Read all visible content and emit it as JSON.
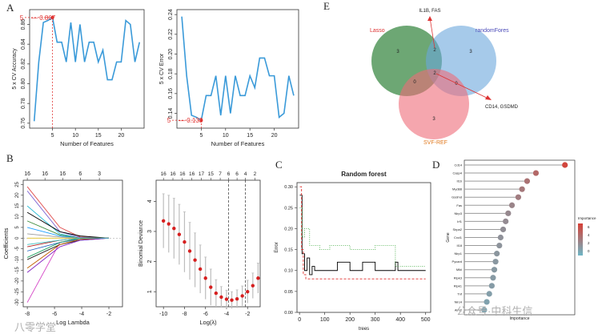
{
  "panel_letters": {
    "A": "A",
    "B": "B",
    "C": "C",
    "D": "D",
    "E": "E"
  },
  "watermarks": {
    "left": "八零学堂",
    "right": "公众号·中科生信"
  },
  "colors": {
    "line_blue": "#3a9ad9",
    "highlight_red": "#e0312f",
    "venn_green": "#3c8a45",
    "venn_blue": "#6aa7dc",
    "venn_red": "#ef6b78"
  },
  "chart_data": [
    {
      "id": "A1",
      "type": "line",
      "xlabel": "Number of Features",
      "ylabel": "5 x CV Accuracy",
      "xlim": [
        0,
        25
      ],
      "ylim": [
        0.755,
        0.875
      ],
      "xticks": [
        "5",
        "10",
        "15",
        "20"
      ],
      "yticks": [
        "0.76",
        "0.78",
        "0.80",
        "0.82",
        "0.84",
        "0.86"
      ],
      "x": [
        1,
        2,
        3,
        4,
        5,
        6,
        7,
        8,
        9,
        10,
        11,
        12,
        13,
        14,
        15,
        16,
        17,
        18,
        19,
        20,
        21,
        22,
        23,
        24
      ],
      "y": [
        0.762,
        0.822,
        0.862,
        0.864,
        0.867,
        0.842,
        0.842,
        0.822,
        0.862,
        0.822,
        0.86,
        0.822,
        0.842,
        0.842,
        0.822,
        0.834,
        0.804,
        0.804,
        0.822,
        0.822,
        0.864,
        0.86,
        0.822,
        0.842
      ],
      "highlight": {
        "label": "5",
        "value_label": "0.867",
        "x": 5,
        "y": 0.867
      }
    },
    {
      "id": "A2",
      "type": "line",
      "xlabel": "Number of Features",
      "ylabel": "5 x CV Error",
      "xlim": [
        0,
        25
      ],
      "ylim": [
        0.125,
        0.245
      ],
      "xticks": [
        "5",
        "10",
        "15",
        "20"
      ],
      "yticks": [
        "0.14",
        "0.16",
        "0.18",
        "0.20",
        "0.22",
        "0.24"
      ],
      "x": [
        1,
        2,
        3,
        4,
        5,
        6,
        7,
        8,
        9,
        10,
        11,
        12,
        13,
        14,
        15,
        16,
        17,
        18,
        19,
        20,
        21,
        22,
        23,
        24
      ],
      "y": [
        0.238,
        0.178,
        0.138,
        0.136,
        0.133,
        0.158,
        0.158,
        0.178,
        0.138,
        0.178,
        0.14,
        0.178,
        0.158,
        0.158,
        0.178,
        0.166,
        0.196,
        0.196,
        0.178,
        0.178,
        0.136,
        0.14,
        0.178,
        0.158
      ],
      "highlight": {
        "label": "5",
        "value_label": "0.133",
        "x": 5,
        "y": 0.133
      }
    },
    {
      "id": "B1",
      "type": "line",
      "xlabel": "Log Lambda",
      "ylabel": "Coefficients",
      "xlim": [
        -8.3,
        -1.0
      ],
      "ylim": [
        -32,
        27
      ],
      "xticks": [
        "-8",
        "-6",
        "-4",
        "-2"
      ],
      "yticks": [
        "-30",
        "-25",
        "-20",
        "-15",
        "-10",
        "-5",
        "0",
        "5",
        "10",
        "15",
        "20",
        "25"
      ],
      "top_ticks": [
        {
          "x": -8,
          "label": "16"
        },
        {
          "x": -6.7,
          "label": "16"
        },
        {
          "x": -5.4,
          "label": "16"
        },
        {
          "x": -4.1,
          "label": "6"
        },
        {
          "x": -2.7,
          "label": "3"
        }
      ],
      "x": [
        -8.0,
        -5.6,
        -4.1,
        -2.0
      ],
      "series": [
        {
          "color": "#d64bc8",
          "values": [
            -30,
            -2,
            0,
            0
          ]
        },
        {
          "color": "#e04a4a",
          "values": [
            24,
            5,
            0.5,
            0
          ]
        },
        {
          "color": "#7a5fd1",
          "values": [
            22,
            3,
            0.3,
            0
          ]
        },
        {
          "color": "#2bbcd6",
          "values": [
            15,
            2,
            0,
            0
          ]
        },
        {
          "color": "#000000",
          "values": [
            12,
            3,
            1,
            0
          ]
        },
        {
          "color": "#3a8a3a",
          "values": [
            8,
            1.5,
            0,
            0
          ]
        },
        {
          "color": "#1ea0ff",
          "values": [
            5,
            1,
            0,
            0
          ]
        },
        {
          "color": "#9a9a9a",
          "values": [
            2,
            0.5,
            0,
            0
          ]
        },
        {
          "color": "#e0c020",
          "values": [
            0,
            0,
            0,
            0
          ]
        },
        {
          "color": "#b02020",
          "values": [
            -4,
            -1,
            0,
            0
          ]
        },
        {
          "color": "#2060c0",
          "values": [
            -6,
            -2,
            -0.5,
            0
          ]
        },
        {
          "color": "#20a060",
          "values": [
            -9,
            -2,
            0,
            0
          ]
        },
        {
          "color": "#202020",
          "values": [
            -10,
            -3,
            -1,
            0
          ]
        },
        {
          "color": "#c06000",
          "values": [
            -14,
            -3,
            -0.5,
            0
          ]
        },
        {
          "color": "#8020c0",
          "values": [
            -16,
            -4,
            -1,
            0
          ]
        },
        {
          "color": "#40c0c0",
          "values": [
            -3,
            -1,
            0,
            0
          ]
        }
      ]
    },
    {
      "id": "B2",
      "type": "scatter",
      "xlabel": "Log(λ)",
      "ylabel": "Binomial Deviance",
      "xlim": [
        -10.7,
        -0.8
      ],
      "ylim": [
        0.5,
        4.7
      ],
      "xticks": [
        "-10",
        "-8",
        "-6",
        "-4",
        "-2"
      ],
      "yticks": [
        "1",
        "2",
        "3",
        "4"
      ],
      "top_ticks": [
        {
          "x": -10,
          "label": "16"
        },
        {
          "x": -9.1,
          "label": "16"
        },
        {
          "x": -8.2,
          "label": "16"
        },
        {
          "x": -7.3,
          "label": "16"
        },
        {
          "x": -6.4,
          "label": "17"
        },
        {
          "x": -5.5,
          "label": "15"
        },
        {
          "x": -4.6,
          "label": "7"
        },
        {
          "x": -3.8,
          "label": "6"
        },
        {
          "x": -3.0,
          "label": "6"
        },
        {
          "x": -2.2,
          "label": "4"
        },
        {
          "x": -1.3,
          "label": "2"
        }
      ],
      "x": [
        -10.0,
        -9.5,
        -9.0,
        -8.5,
        -8.0,
        -7.5,
        -7.0,
        -6.5,
        -6.0,
        -5.5,
        -5.0,
        -4.5,
        -4.0,
        -3.5,
        -3.0,
        -2.5,
        -2.0,
        -1.5,
        -1.0
      ],
      "y": [
        3.35,
        3.25,
        3.1,
        2.9,
        2.65,
        2.35,
        2.05,
        1.75,
        1.45,
        1.15,
        0.95,
        0.82,
        0.75,
        0.72,
        0.76,
        0.86,
        1.0,
        1.2,
        1.45
      ],
      "err": [
        0.9,
        0.95,
        1.0,
        1.0,
        1.0,
        0.95,
        0.9,
        0.8,
        0.7,
        0.6,
        0.45,
        0.35,
        0.3,
        0.28,
        0.3,
        0.33,
        0.38,
        0.42,
        0.5
      ],
      "vlines": [
        -3.8,
        -2.2
      ]
    },
    {
      "id": "C",
      "type": "line",
      "title": "Random forest",
      "xlabel": "trees",
      "ylabel": "Error",
      "xlim": [
        -10,
        520
      ],
      "ylim": [
        0,
        0.31
      ],
      "xticks": [
        "0",
        "100",
        "200",
        "300",
        "400",
        "500"
      ],
      "yticks": [
        "0.00",
        "0.05",
        "0.10",
        "0.15",
        "0.20",
        "0.25",
        "0.30"
      ],
      "series": [
        {
          "style": "solid-black",
          "x": [
            1,
            10,
            20,
            30,
            40,
            50,
            60,
            100,
            150,
            200,
            250,
            300,
            380,
            390,
            500
          ],
          "y": [
            0.28,
            0.14,
            0.1,
            0.13,
            0.09,
            0.11,
            0.1,
            0.1,
            0.12,
            0.1,
            0.12,
            0.1,
            0.12,
            0.1,
            0.1
          ]
        },
        {
          "style": "dashed-red",
          "x": [
            1,
            8,
            15,
            25,
            40,
            500
          ],
          "y": [
            0.3,
            0.15,
            0.09,
            0.08,
            0.08,
            0.08
          ]
        },
        {
          "style": "dotted-green",
          "x": [
            1,
            10,
            20,
            40,
            80,
            120,
            200,
            300,
            380,
            500
          ],
          "y": [
            0.25,
            0.18,
            0.2,
            0.16,
            0.15,
            0.16,
            0.15,
            0.16,
            0.11,
            0.11
          ]
        }
      ]
    },
    {
      "id": "D",
      "type": "scatter",
      "xlabel": "Importance",
      "ylabel": "Gene",
      "legend_title": "Importance",
      "legend_ticks": [
        "6",
        "4",
        "2",
        "0"
      ],
      "genes": [
        "Cd14",
        "Casp4",
        "Il1b",
        "Myd88",
        "Gsdmd",
        "Fas",
        "Nlrp3",
        "Irf1",
        "Sirpa2",
        "Cxcl1",
        "Il18",
        "Nlrp1",
        "Pycard",
        "Mlkl",
        "Ripk3",
        "Ripk1",
        "Tnf",
        "Nlrc4",
        "Aim2"
      ],
      "values": [
        7.6,
        5.3,
        4.6,
        4.2,
        3.9,
        3.4,
        3.1,
        2.9,
        2.7,
        2.5,
        2.4,
        2.2,
        2.1,
        2.0,
        1.9,
        1.8,
        1.6,
        1.4,
        1.2
      ]
    },
    {
      "id": "E",
      "type": "venn",
      "sets": [
        {
          "name": "Lasso",
          "color": "#3c8a45"
        },
        {
          "name": "randomFores",
          "color": "#6aa7dc"
        },
        {
          "name": "SVF-REF",
          "color": "#ef6b78"
        }
      ],
      "regions": {
        "only_a": "3",
        "only_b": "3",
        "only_c": "3",
        "ab": "2",
        "ac": "0",
        "bc": "0",
        "abc": "2"
      },
      "annotations": [
        "IL1B, FAS",
        "CD14, GSDMD"
      ]
    }
  ]
}
